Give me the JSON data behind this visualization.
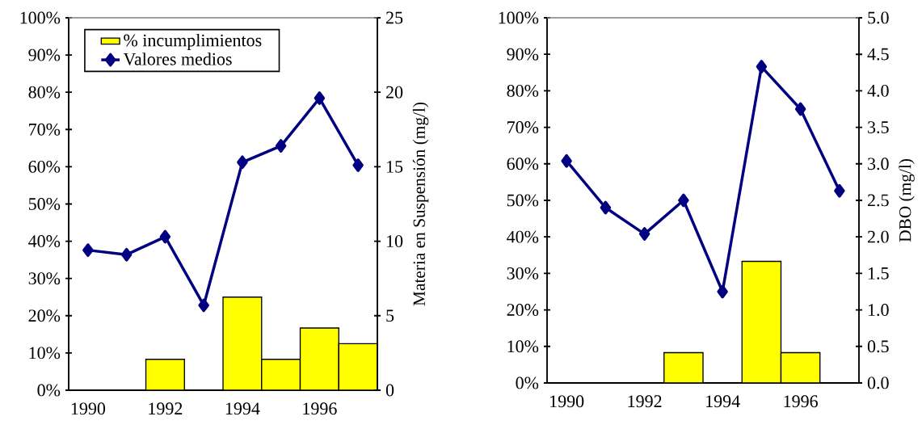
{
  "chart_data": [
    {
      "type": "bar",
      "categories": [
        "1990",
        null,
        "1992",
        null,
        "1994",
        null,
        "1996",
        null
      ],
      "series": [
        {
          "name": "% incumplimientos",
          "color": "#ffff00",
          "values": [
            null,
            null,
            8.3,
            null,
            25,
            8.3,
            16.7,
            12.5
          ]
        },
        {
          "name": "Valores medios",
          "type": "line",
          "axis": "y2",
          "color": "#000080",
          "values": [
            9.4,
            9.1,
            10.3,
            5.7,
            15.3,
            16.4,
            19.6,
            15.1
          ]
        }
      ],
      "ylim": [
        0,
        100
      ],
      "yticks": [
        {
          "value": 0,
          "label": "0%"
        },
        {
          "value": 10,
          "label": "10%"
        },
        {
          "value": 20,
          "label": "20%"
        },
        {
          "value": 30,
          "label": "30%"
        },
        {
          "value": 40,
          "label": "40%"
        },
        {
          "value": 50,
          "label": "50%"
        },
        {
          "value": 60,
          "label": "60%"
        },
        {
          "value": 70,
          "label": "70%"
        },
        {
          "value": 80,
          "label": "80%"
        },
        {
          "value": 90,
          "label": "90%"
        },
        {
          "value": 100,
          "label": "100%"
        }
      ],
      "y2lim": [
        0,
        25
      ],
      "y2ticks": [
        0,
        5,
        10,
        15,
        20,
        25
      ],
      "y2label": "Materia en Suspensión (mg/l)",
      "marker": "diamond",
      "legend": "top left"
    },
    {
      "type": "bar",
      "categories": [
        "1990",
        null,
        "1992",
        null,
        "1994",
        null,
        "1996",
        null
      ],
      "series": [
        {
          "color": "#ffff00",
          "values": [
            null,
            null,
            null,
            8.3,
            null,
            33.3,
            8.3,
            null
          ]
        },
        {
          "type": "line",
          "axis": "y2",
          "color": "#000080",
          "values": [
            3.04,
            2.4,
            2.04,
            2.5,
            1.25,
            4.33,
            3.75,
            2.63
          ]
        }
      ],
      "ylim": [
        0,
        100
      ],
      "yticks": [
        {
          "value": 0,
          "label": "0%"
        },
        {
          "value": 10,
          "label": "10%"
        },
        {
          "value": 20,
          "label": "20%"
        },
        {
          "value": 30,
          "label": "30%"
        },
        {
          "value": 40,
          "label": "40%"
        },
        {
          "value": 50,
          "label": "50%"
        },
        {
          "value": 60,
          "label": "60%"
        },
        {
          "value": 70,
          "label": "70%"
        },
        {
          "value": 80,
          "label": "80%"
        },
        {
          "value": 90,
          "label": "90%"
        },
        {
          "value": 100,
          "label": "100%"
        }
      ],
      "y2lim": [
        0,
        5
      ],
      "y2ticks": [
        {
          "value": 0,
          "label": "0.0"
        },
        0.5,
        {
          "value": 1,
          "label": "1.0"
        },
        1.5,
        {
          "value": 2,
          "label": "2.0"
        },
        2.5,
        {
          "value": 3,
          "label": "3.0"
        },
        3.5,
        {
          "value": 4,
          "label": "4.0"
        },
        4.5,
        {
          "value": 5,
          "label": "5.0"
        }
      ],
      "y2label": "DBO (mg/l)",
      "marker": "diamond"
    }
  ]
}
